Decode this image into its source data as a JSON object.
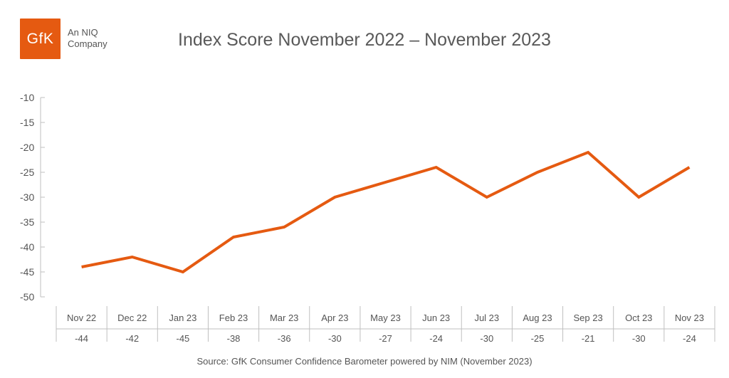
{
  "logo": {
    "text": "GfK",
    "tagline_line1": "An NIQ",
    "tagline_line2": "Company",
    "color": "#e55a11"
  },
  "source": "Source: GfK Consumer Confidence Barometer powered by NIM (November 2023)",
  "chart_data": {
    "type": "line",
    "title": "Index Score November 2022 – November 2023",
    "xlabel": "",
    "ylabel": "",
    "categories": [
      "Nov 22",
      "Dec 22",
      "Jan 23",
      "Feb 23",
      "Mar 23",
      "Apr 23",
      "May 23",
      "Jun 23",
      "Jul 23",
      "Aug 23",
      "Sep 23",
      "Oct 23",
      "Nov 23"
    ],
    "series": [
      {
        "values": [
          -44,
          -42,
          -45,
          -38,
          -36,
          -30,
          -27,
          -24,
          -30,
          -25,
          -21,
          -30,
          -24
        ],
        "color": "#e55a11"
      }
    ],
    "table_values": [
      "-44",
      "-42",
      "-45",
      "-38",
      "-36",
      "-30",
      "-27",
      "-24",
      "-30",
      "-25",
      "-21",
      "-30",
      "-24"
    ],
    "ylim": [
      -50,
      -10
    ],
    "yticks": [
      -10,
      -15,
      -20,
      -25,
      -30,
      -35,
      -40,
      -45,
      -50
    ],
    "grid": false,
    "legend": "none"
  }
}
